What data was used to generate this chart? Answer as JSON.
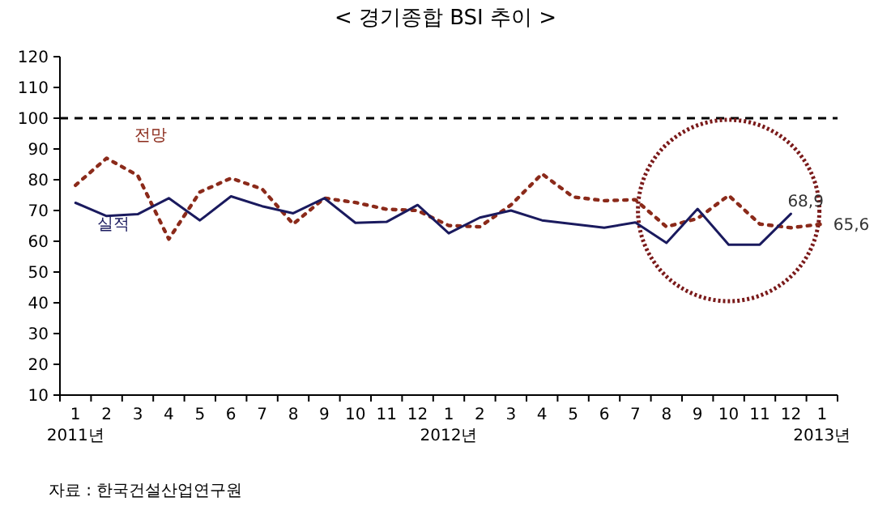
{
  "chart_data": {
    "type": "line",
    "title": "< 경기종합 BSI 추이 >",
    "categories": [
      "1\n2011년",
      "2",
      "3",
      "4",
      "5",
      "6",
      "7",
      "8",
      "9",
      "10",
      "11",
      "12",
      "1\n2012년",
      "2",
      "3",
      "4",
      "5",
      "6",
      "7",
      "8",
      "9",
      "10",
      "11",
      "12",
      "1\n2013년"
    ],
    "series": [
      {
        "name": "전망",
        "color": "#8b2a1a",
        "line_style": "dotted",
        "values": [
          78.2,
          87.0,
          81.4,
          60.7,
          76.0,
          80.5,
          77.0,
          65.6,
          74.0,
          72.6,
          70.4,
          70.0,
          65.1,
          64.7,
          71.8,
          81.9,
          74.4,
          73.2,
          73.5,
          64.7,
          67.4,
          74.9,
          65.6,
          64.4,
          65.6
        ],
        "value_labels": [
          null,
          null,
          null,
          null,
          null,
          null,
          null,
          null,
          null,
          null,
          null,
          null,
          null,
          null,
          null,
          null,
          null,
          null,
          null,
          null,
          null,
          null,
          null,
          null,
          "65,6"
        ]
      },
      {
        "name": "실적",
        "color": "#1a1a5e",
        "line_style": "solid",
        "values": [
          72.5,
          68.2,
          68.8,
          74.0,
          66.8,
          74.6,
          71.4,
          69.1,
          74.0,
          66.0,
          66.3,
          71.8,
          62.6,
          67.7,
          70.0,
          66.8,
          65.6,
          64.4,
          66.1,
          59.5,
          70.5,
          58.9,
          58.9,
          68.9,
          null
        ],
        "value_labels": [
          null,
          null,
          null,
          null,
          null,
          null,
          null,
          null,
          null,
          null,
          null,
          null,
          null,
          null,
          null,
          null,
          null,
          null,
          null,
          null,
          null,
          null,
          null,
          "68,9",
          null
        ]
      }
    ],
    "ylim": [
      10,
      120
    ],
    "yticks": [
      10,
      20,
      30,
      40,
      50,
      60,
      70,
      80,
      90,
      100,
      110,
      120
    ],
    "grid": false,
    "marker": "none",
    "ref_lines": [
      {
        "axis": "y",
        "value": 100,
        "color": "#000000",
        "line_style": "dashed"
      }
    ],
    "annotations": [
      "자료 : 한국건설산업연구원"
    ]
  }
}
